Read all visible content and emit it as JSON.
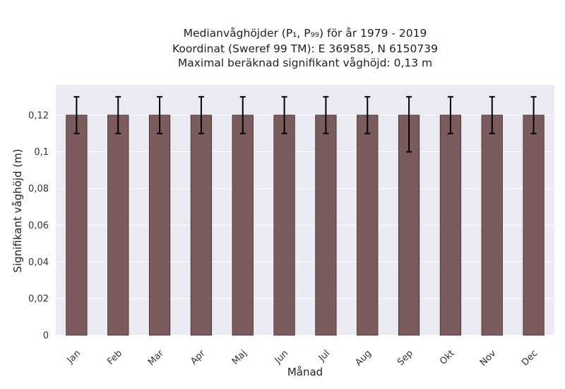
{
  "chart_data": {
    "type": "bar",
    "title_lines": [
      "Medianvåghöjder (P₁, P₉₉) för år 1979 - 2019",
      "Koordinat (Sweref 99 TM): E 369585, N 6150739",
      "Maximal beräknad signifikant våghöjd: 0,13 m"
    ],
    "xlabel": "Månad",
    "ylabel": "Signifikant våghöjd (m)",
    "categories": [
      "Jan",
      "Feb",
      "Mar",
      "Apr",
      "Maj",
      "Jun",
      "Jul",
      "Aug",
      "Sep",
      "Okt",
      "Nov",
      "Dec"
    ],
    "values": [
      0.12,
      0.12,
      0.12,
      0.12,
      0.12,
      0.12,
      0.12,
      0.12,
      0.12,
      0.12,
      0.12,
      0.12
    ],
    "p1": [
      0.11,
      0.11,
      0.11,
      0.11,
      0.11,
      0.11,
      0.11,
      0.11,
      0.1,
      0.11,
      0.11,
      0.11
    ],
    "p99": [
      0.13,
      0.13,
      0.13,
      0.13,
      0.13,
      0.13,
      0.13,
      0.13,
      0.13,
      0.13,
      0.13,
      0.13
    ],
    "yticks": [
      0,
      0.02,
      0.04,
      0.06,
      0.08,
      0.1,
      0.12
    ],
    "ytick_labels": [
      "0",
      "0,02",
      "0,04",
      "0,06",
      "0,08",
      "0,1",
      "0,12"
    ],
    "ylim": [
      0,
      0.1365
    ],
    "grid": true,
    "colors": {
      "bar": "#7b5b5b",
      "bar_edge": "#3a2a2a",
      "plot_bg": "#eaeaf2",
      "grid": "#ffffff",
      "error": "#000000"
    }
  }
}
